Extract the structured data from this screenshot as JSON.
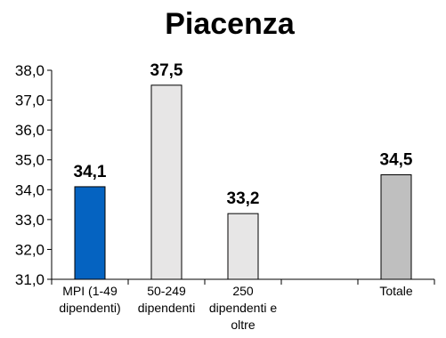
{
  "chart_data": {
    "type": "bar",
    "title": "Piacenza",
    "categories": [
      [
        "MPI (1-49",
        "dipendenti)"
      ],
      [
        "50-249",
        "dipendenti"
      ],
      [
        "250",
        "dipendenti e",
        "oltre"
      ],
      [],
      [
        "Totale"
      ]
    ],
    "values": [
      34.1,
      37.5,
      33.2,
      null,
      34.5
    ],
    "value_labels": [
      "34,1",
      "37,5",
      "33,2",
      "",
      "34,5"
    ],
    "bar_colors": [
      "#0563c1",
      "#e7e6e6",
      "#e7e6e6",
      null,
      "#bfbfbf"
    ],
    "ylim": [
      31.0,
      38.0
    ],
    "yticks": [
      31.0,
      32.0,
      33.0,
      34.0,
      35.0,
      36.0,
      37.0,
      38.0
    ],
    "ytick_labels": [
      "31,0",
      "32,0",
      "33,0",
      "34,0",
      "35,0",
      "36,0",
      "37,0",
      "38,0"
    ],
    "xlabel": "",
    "ylabel": "",
    "grid": false,
    "legend": "none"
  }
}
